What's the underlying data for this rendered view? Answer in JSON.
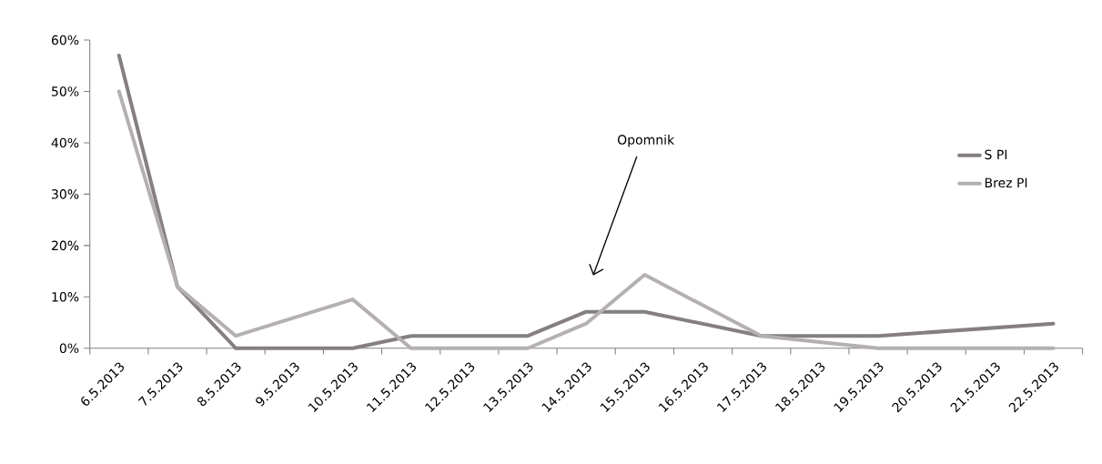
{
  "chart_data": {
    "type": "line",
    "categories": [
      "6.5.2013",
      "7.5.2013",
      "8.5.2013",
      "9.5.2013",
      "10.5.2013",
      "11.5.2013",
      "12.5.2013",
      "13.5.2013",
      "14.5.2013",
      "15.5.2013",
      "16.5.2013",
      "17.5.2013",
      "18.5.2013",
      "19.5.2013",
      "20.5.2013",
      "21.5.2013",
      "22.5.2013"
    ],
    "series": [
      {
        "name": "S PI",
        "color": "#857f7f",
        "values": [
          57,
          12,
          0,
          null,
          0,
          2.4,
          null,
          2.4,
          7.1,
          7.1,
          null,
          2.4,
          null,
          2.4,
          null,
          null,
          4.8
        ]
      },
      {
        "name": "Brez PI",
        "color": "#b5b0b0",
        "values": [
          50,
          12,
          2.4,
          null,
          9.5,
          0,
          null,
          0,
          4.8,
          14.3,
          null,
          2.4,
          null,
          0,
          null,
          null,
          0
        ]
      }
    ],
    "ylim": [
      0,
      60
    ],
    "yticks": [
      {
        "value": 0,
        "label": "0%"
      },
      {
        "value": 10,
        "label": "10%"
      },
      {
        "value": 20,
        "label": "20%"
      },
      {
        "value": 30,
        "label": "30%"
      },
      {
        "value": 40,
        "label": "40%"
      },
      {
        "value": 50,
        "label": "50%"
      },
      {
        "value": 60,
        "label": "60%"
      }
    ],
    "annotations": [
      "Opomnik"
    ],
    "legend": "right",
    "grid": false,
    "marker": "none",
    "line_style": "solid"
  }
}
